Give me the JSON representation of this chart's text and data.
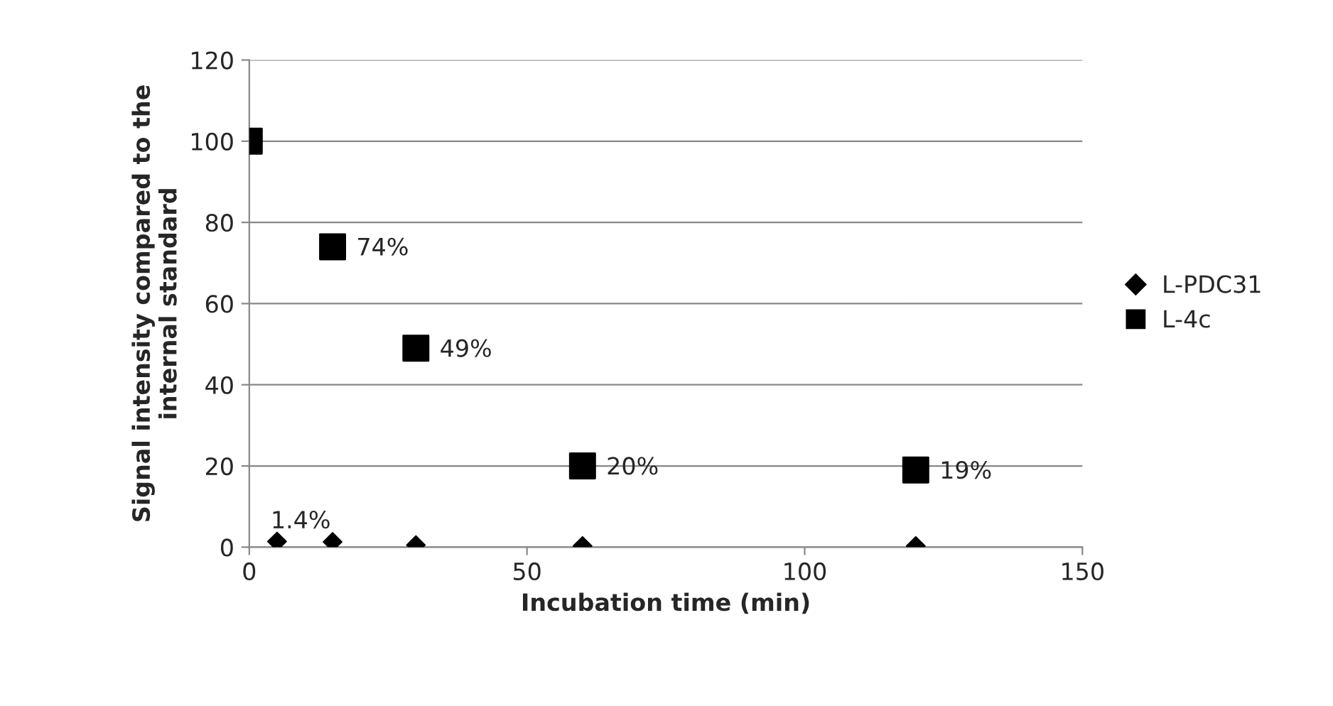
{
  "chart_data": {
    "type": "scatter",
    "xlabel": "Incubation time (min)",
    "ylabel": "Signal intensity compared to the\ninternal standard",
    "xlim": [
      0,
      150
    ],
    "xticks": [
      0,
      50,
      100,
      150
    ],
    "ylim": [
      0,
      120
    ],
    "yticks": [
      0,
      20,
      40,
      60,
      80,
      100,
      120
    ],
    "grid": "y",
    "legend": "right",
    "series": [
      {
        "name": "L-PDC31",
        "color": "#000000",
        "marker": "diamond",
        "x": [
          5,
          15,
          30,
          60,
          120
        ],
        "values": [
          1.4,
          1.3,
          0.5,
          0.3,
          0.3
        ],
        "value_labels": [
          "1.4%",
          null,
          null,
          null,
          null
        ]
      },
      {
        "name": "L-4c",
        "color": "#000000",
        "marker": "square",
        "x": [
          0,
          15,
          30,
          60,
          120
        ],
        "values": [
          100,
          74,
          49,
          20,
          19
        ],
        "value_labels": [
          null,
          "74%",
          "49%",
          "20%",
          "19%"
        ]
      }
    ]
  }
}
